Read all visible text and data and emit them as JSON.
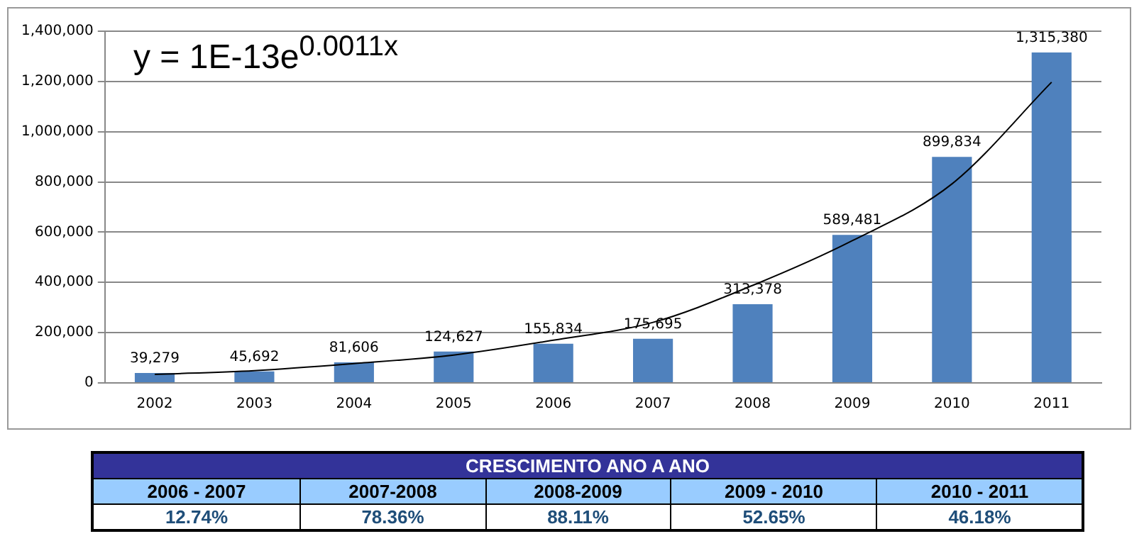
{
  "chart_data": [
    {
      "type": "bar",
      "categories": [
        "2002",
        "2003",
        "2004",
        "2005",
        "2006",
        "2007",
        "2008",
        "2009",
        "2010",
        "2011"
      ],
      "series": [
        {
          "type": "bar",
          "color": "#4f81bd",
          "values": [
            39279,
            45692,
            81606,
            124627,
            155834,
            175695,
            313378,
            589481,
            899834,
            1315380
          ],
          "value_labels": [
            "39,279",
            "45,692",
            "81,606",
            "124,627",
            "155,834",
            "175,695",
            "313,378",
            "589,481",
            "899,834",
            "1,315,380"
          ]
        },
        {
          "type": "line",
          "color": "#000000",
          "marker": "none",
          "values": [
            34000,
            49000,
            77000,
            111000,
            170000,
            241000,
            388000,
            566000,
            792000,
            1197000
          ]
        }
      ],
      "ylim": [
        0,
        1400000
      ],
      "yticks": [
        {
          "value": 0,
          "label": "0"
        },
        {
          "value": 200000,
          "label": "200,000"
        },
        {
          "value": 400000,
          "label": "400,000"
        },
        {
          "value": 600000,
          "label": "600,000"
        },
        {
          "value": 800000,
          "label": "800,000"
        },
        {
          "value": 1000000,
          "label": "1,000,000"
        },
        {
          "value": 1200000,
          "label": "1,200,000"
        },
        {
          "value": 1400000,
          "label": "1,400,000"
        }
      ],
      "grid": "y",
      "legend": false,
      "annotations": [
        "y = 1E-13e$^{0.0011x}$"
      ]
    },
    {
      "type": "other",
      "title": "CRESCIMENTO ANO A ANO",
      "categories": [
        "2006 - 2007",
        "2007-2008",
        "2008-2009",
        "2009 - 2010",
        "2010 - 2011"
      ],
      "value_labels": [
        "12.74%",
        "78.36%",
        "88.11%",
        "52.65%",
        "46.18%"
      ]
    }
  ]
}
